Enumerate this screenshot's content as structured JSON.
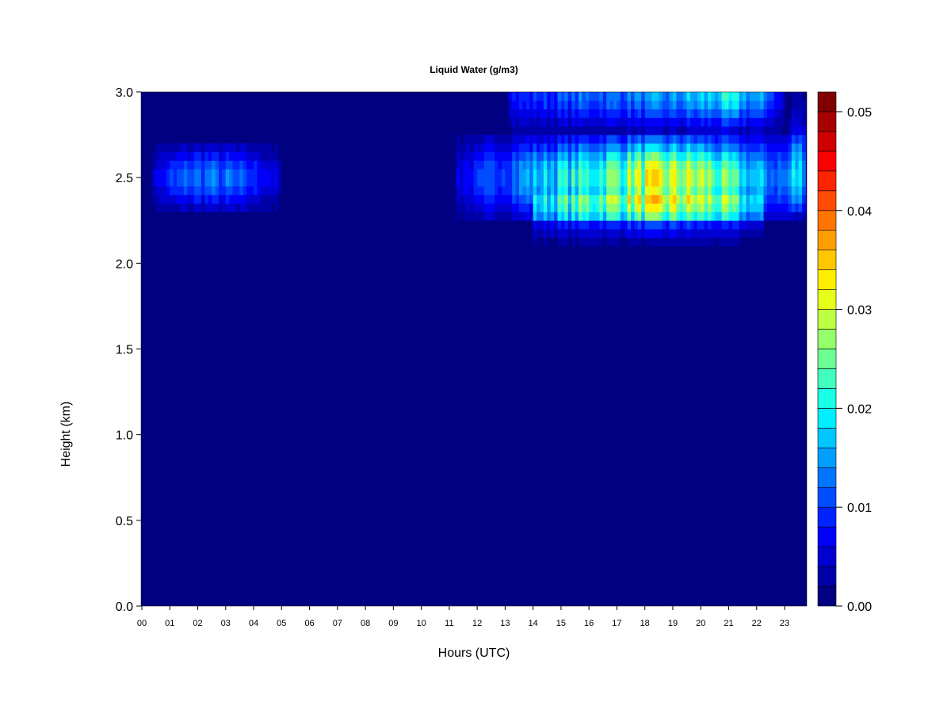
{
  "chart_data": {
    "type": "heatmap",
    "title": "Liquid Water (g/m3)",
    "xlabel": "Hours (UTC)",
    "ylabel": "Height (km)",
    "xlim": [
      0,
      23.8
    ],
    "ylim": [
      0,
      3.0
    ],
    "x_ticks": [
      "00",
      "01",
      "02",
      "03",
      "04",
      "05",
      "06",
      "07",
      "08",
      "09",
      "10",
      "11",
      "12",
      "13",
      "14",
      "15",
      "16",
      "17",
      "18",
      "19",
      "20",
      "21",
      "22",
      "23"
    ],
    "y_ticks": [
      "0.0",
      "0.5",
      "1.0",
      "1.5",
      "2.0",
      "2.5",
      "3.0"
    ],
    "colorbar": {
      "range": [
        0,
        0.052
      ],
      "levels": 26,
      "step": 0.002,
      "ticks": [
        "0.00",
        "0.01",
        "0.02",
        "0.03",
        "0.04",
        "0.05"
      ],
      "colormap": "jet",
      "low_color": "#000080",
      "high_color": "#800000"
    },
    "grid": false,
    "cloud_layers": [
      {
        "z_center": 2.5,
        "z_sigma": 0.12,
        "z_range": [
          2.28,
          2.72
        ],
        "profile": [
          [
            0.4,
            0.005
          ],
          [
            1.2,
            0.01
          ],
          [
            2.0,
            0.013
          ],
          [
            3.0,
            0.012
          ],
          [
            4.0,
            0.009
          ],
          [
            4.9,
            0.005
          ],
          [
            5.0,
            0
          ]
        ]
      },
      {
        "z_center": 2.5,
        "z_sigma": 0.16,
        "z_range": [
          2.25,
          2.73
        ],
        "profile": [
          [
            11.3,
            0.006
          ],
          [
            12.5,
            0.01
          ],
          [
            14.0,
            0.016
          ],
          [
            16.0,
            0.022
          ],
          [
            18.0,
            0.029
          ],
          [
            20.0,
            0.028
          ],
          [
            21.0,
            0.022
          ],
          [
            22.0,
            0.016
          ],
          [
            23.0,
            0.012
          ],
          [
            23.8,
            0.01
          ]
        ]
      },
      {
        "z_center": 2.3,
        "z_sigma": 0.1,
        "z_range": [
          2.05,
          2.4
        ],
        "profile": [
          [
            14.0,
            0.008
          ],
          [
            16.0,
            0.011
          ],
          [
            19.0,
            0.012
          ],
          [
            21.0,
            0.01
          ],
          [
            22.2,
            0.006
          ],
          [
            22.3,
            0
          ]
        ]
      },
      {
        "z_center": 3.0,
        "z_sigma": 0.14,
        "z_range": [
          2.76,
          3.0
        ],
        "profile": [
          [
            13.1,
            0.008
          ],
          [
            16.0,
            0.012
          ],
          [
            19.0,
            0.014
          ],
          [
            21.0,
            0.019
          ],
          [
            22.5,
            0.012
          ],
          [
            23.0,
            0.004
          ],
          [
            23.1,
            0
          ]
        ]
      },
      {
        "z_center": 2.6,
        "z_sigma": 0.25,
        "z_range": [
          2.3,
          3.0
        ],
        "profile": [
          [
            23.1,
            0
          ],
          [
            23.3,
            0.007
          ],
          [
            23.8,
            0.008
          ]
        ]
      }
    ]
  }
}
